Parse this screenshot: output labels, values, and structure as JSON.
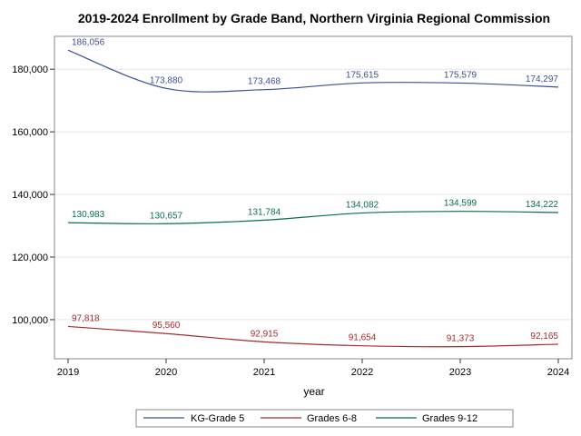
{
  "chart_data": {
    "type": "line",
    "title": "2019-2024 Enrollment by Grade Band, Northern Virginia Regional Commission",
    "xlabel": "year",
    "ylabel": "",
    "x": [
      2019,
      2020,
      2021,
      2022,
      2023,
      2024
    ],
    "x_tick_labels": [
      "2019",
      "2020",
      "2021",
      "2022",
      "2023",
      "2024"
    ],
    "y_ticks": [
      100000,
      120000,
      140000,
      160000,
      180000
    ],
    "y_tick_labels": [
      "100,000",
      "120,000",
      "140,000",
      "160,000",
      "180,000"
    ],
    "ylim": [
      87500,
      190500
    ],
    "grid": true,
    "legend_position": "bottom",
    "series": [
      {
        "name": "KG-Grade 5",
        "color": "#3b4f94",
        "values": [
          186056,
          173880,
          173468,
          175615,
          175579,
          174297
        ],
        "labels": [
          "186,056",
          "173,880",
          "173,468",
          "175,615",
          "175,579",
          "174,297"
        ]
      },
      {
        "name": "Grades 6-8",
        "color": "#a52a2a",
        "values": [
          97818,
          95560,
          92915,
          91654,
          91373,
          92165
        ],
        "labels": [
          "97,818",
          "95,560",
          "92,915",
          "91,654",
          "91,373",
          "92,165"
        ]
      },
      {
        "name": "Grades 9-12",
        "color": "#0b6b56",
        "values": [
          130983,
          130657,
          131784,
          134082,
          134599,
          134222
        ],
        "labels": [
          "130,983",
          "130,657",
          "131,784",
          "134,082",
          "134,599",
          "134,222"
        ]
      }
    ]
  }
}
